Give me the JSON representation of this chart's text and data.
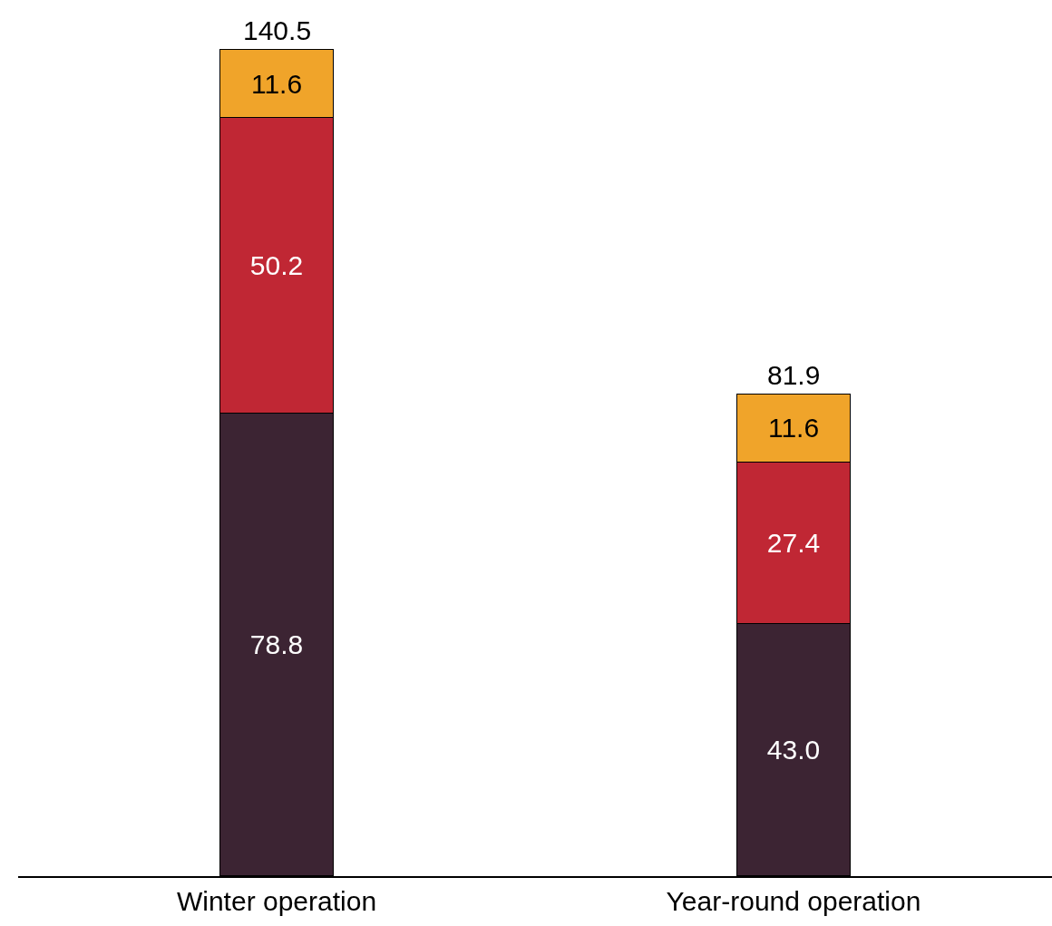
{
  "chart_data": {
    "type": "bar",
    "stacked": true,
    "categories": [
      "Winter operation",
      "Year-round operation"
    ],
    "series": [
      {
        "color": "#3c2433",
        "values": [
          78.8,
          43.0
        ],
        "value_labels": [
          "78.8",
          "43.0"
        ]
      },
      {
        "color": "#c02734",
        "values": [
          50.2,
          27.4
        ],
        "value_labels": [
          "50.2",
          "27.4"
        ]
      },
      {
        "color": "#f0a42a",
        "values": [
          11.6,
          11.6
        ],
        "value_labels": [
          "11.6",
          "11.6"
        ]
      }
    ],
    "totals": [
      "140.5",
      "81.9"
    ],
    "ylim": [
      0,
      149
    ]
  }
}
